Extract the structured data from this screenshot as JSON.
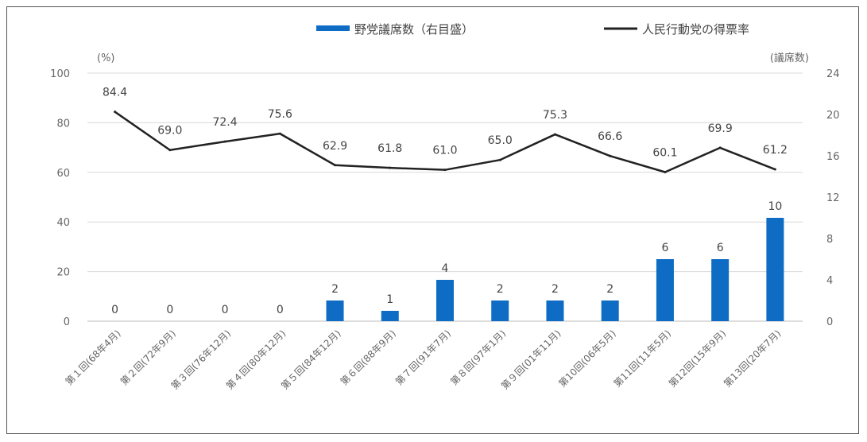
{
  "chart_data": {
    "type": "bar+line",
    "categories": [
      "第１回(68年4月)",
      "第２回(72年9月)",
      "第３回(76年12月)",
      "第４回(80年12月)",
      "第５回(84年12月)",
      "第６回(88年9月)",
      "第７回(91年7月)",
      "第８回(97年1月)",
      "第９回(01年11月)",
      "第10回(06年5月)",
      "第11回(11年5月)",
      "第12回(15年9月)",
      "第13回(20年7月)"
    ],
    "series": [
      {
        "name": "野党議席数（右目盛）",
        "type": "bar",
        "axis": "right",
        "color": "#0e6cc4",
        "values": [
          0,
          0,
          0,
          0,
          2,
          1,
          4,
          2,
          2,
          2,
          6,
          6,
          10
        ]
      },
      {
        "name": "人民行動党の得票率",
        "type": "line",
        "axis": "left",
        "color": "#222222",
        "values": [
          84.4,
          69.0,
          72.4,
          75.6,
          62.9,
          61.8,
          61.0,
          65.0,
          75.3,
          66.6,
          60.1,
          69.9,
          61.2
        ]
      }
    ],
    "left_axis": {
      "unit": "(%)",
      "min": 0,
      "max": 100,
      "ticks": [
        0,
        20,
        40,
        60,
        80,
        100
      ]
    },
    "right_axis": {
      "unit": "(議席数)",
      "min": 0,
      "max": 24,
      "ticks": [
        0,
        4,
        8,
        12,
        16,
        20,
        24
      ]
    },
    "grid": true,
    "legend": "top-right"
  }
}
